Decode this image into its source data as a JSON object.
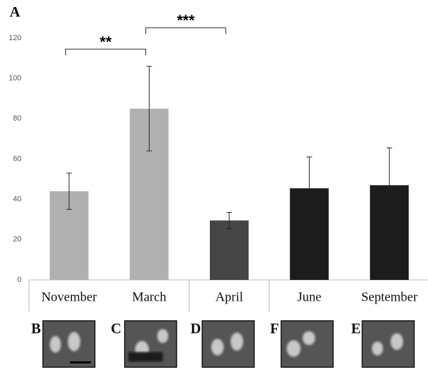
{
  "chart_data": {
    "type": "bar",
    "panel_label": "A",
    "categories": [
      "November",
      "March",
      "April",
      "June",
      "September"
    ],
    "values": [
      44,
      85,
      29.5,
      45.5,
      47
    ],
    "errors": [
      9,
      21,
      4,
      15.5,
      18.5
    ],
    "colors": [
      "#b0b0b0",
      "#b0b0b0",
      "#454545",
      "#1c1c1c",
      "#1c1c1c"
    ],
    "ylim": [
      0,
      120
    ],
    "yticks": [
      0,
      20,
      40,
      60,
      80,
      100,
      120
    ],
    "grid": false,
    "annotations": [
      {
        "text": "**",
        "from": "November",
        "to": "March"
      },
      {
        "text": "***",
        "from": "March",
        "to": "April"
      }
    ]
  },
  "images": [
    {
      "label": "B"
    },
    {
      "label": "C"
    },
    {
      "label": "D"
    },
    {
      "label": "F"
    },
    {
      "label": "E"
    }
  ]
}
